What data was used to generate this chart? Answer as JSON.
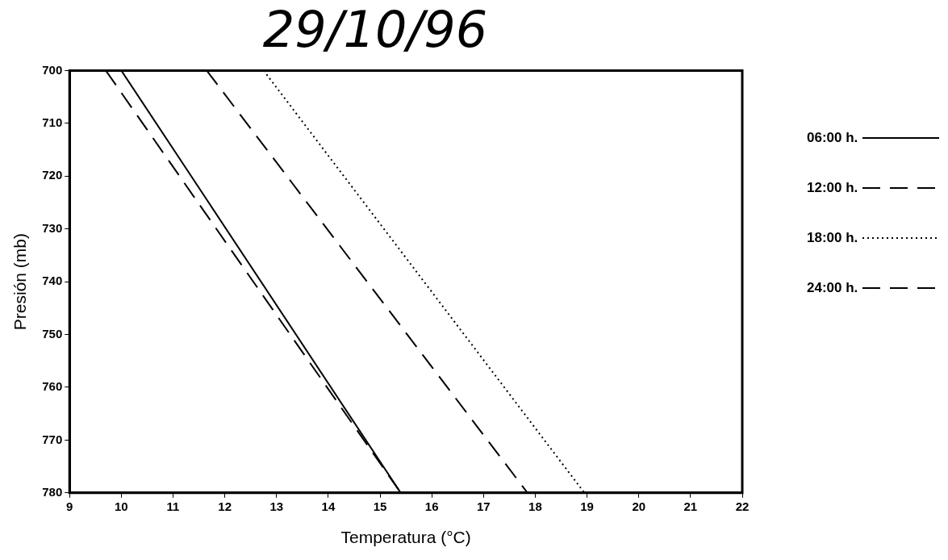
{
  "chart_data": {
    "type": "line",
    "title": "29/10/96",
    "xlabel": "Temperatura (°C)",
    "ylabel": "Presión (mb)",
    "xlim": [
      9,
      22
    ],
    "xticks": [
      9,
      10,
      11,
      12,
      13,
      14,
      15,
      16,
      17,
      18,
      19,
      20,
      21,
      22
    ],
    "ylim": [
      780,
      700
    ],
    "yticks": [
      700,
      710,
      720,
      730,
      740,
      750,
      760,
      770,
      780
    ],
    "grid": false,
    "legend": "right",
    "marker": "none",
    "series": [
      {
        "name": "06:00 h.",
        "color": "#000000",
        "line_style": "solid",
        "x": [
          10.0,
          15.4
        ],
        "values": [
          700,
          780
        ]
      },
      {
        "name": "12:00 h.",
        "color": "#000000",
        "line_style": "dashed",
        "x": [
          11.65,
          17.85
        ],
        "values": [
          700,
          780
        ]
      },
      {
        "name": "18:00 h.",
        "color": "#000000",
        "line_style": "dotted",
        "x": [
          12.75,
          18.95
        ],
        "values": [
          700,
          780
        ]
      },
      {
        "name": "24:00 h.",
        "color": "#000000",
        "line_style": "dashed",
        "x": [
          9.7,
          15.4
        ],
        "values": [
          700,
          780
        ]
      }
    ]
  }
}
